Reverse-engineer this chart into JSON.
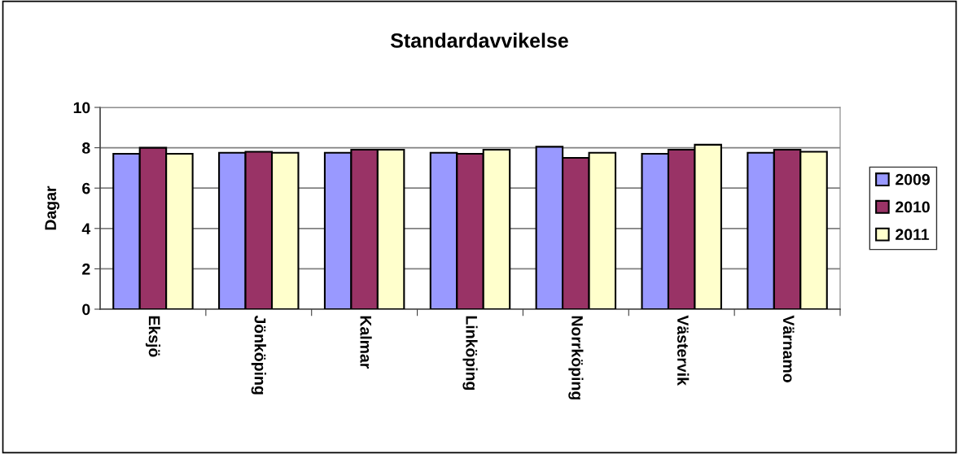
{
  "chart_data": {
    "type": "bar",
    "title": "Standardavvikelse",
    "ylabel": "Dagar",
    "categories": [
      "Eksjö",
      "Jönköping",
      "Kalmar",
      "Linköping",
      "Norrköping",
      "Västervik",
      "Värnamo"
    ],
    "series": [
      {
        "name": "2009",
        "color": "#9999ff",
        "values": [
          7.7,
          7.75,
          7.75,
          7.75,
          8.05,
          7.7,
          7.75
        ]
      },
      {
        "name": "2010",
        "color": "#993366",
        "values": [
          8.0,
          7.8,
          7.9,
          7.7,
          7.5,
          7.9,
          7.9
        ]
      },
      {
        "name": "2011",
        "color": "#ffffcc",
        "values": [
          7.7,
          7.75,
          7.9,
          7.9,
          7.75,
          8.15,
          7.8
        ]
      }
    ],
    "ylim": [
      0,
      10
    ],
    "yticks": [
      0,
      2,
      4,
      6,
      8,
      10
    ],
    "grid": "y",
    "legend": "right"
  }
}
